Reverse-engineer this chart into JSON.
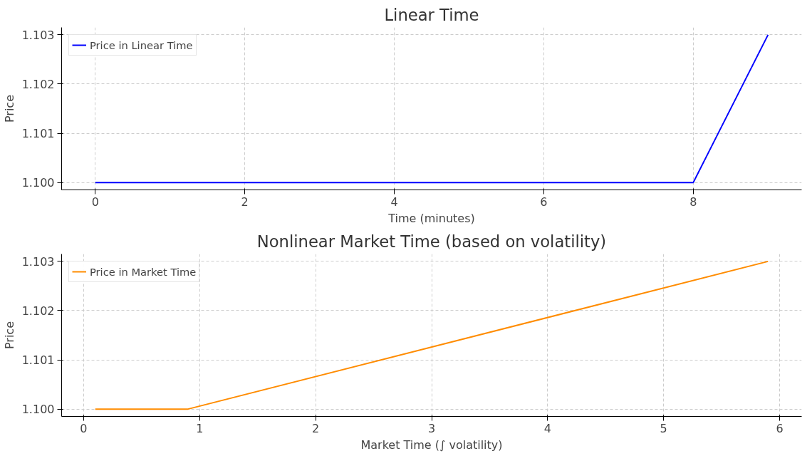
{
  "chart_data": [
    {
      "type": "line",
      "title": "Linear Time",
      "xlabel": "Time (minutes)",
      "ylabel": "Price",
      "x": [
        0,
        1,
        2,
        3,
        4,
        5,
        6,
        7,
        8,
        9
      ],
      "series": [
        {
          "name": "Price in Linear Time",
          "color": "#0000ff",
          "values": [
            1.1,
            1.1,
            1.1,
            1.1,
            1.1,
            1.1,
            1.1,
            1.1,
            1.1,
            1.103
          ]
        }
      ],
      "xlim": [
        -0.45,
        9.45
      ],
      "ylim": [
        1.09985,
        1.10315
      ],
      "xticks": [
        0,
        2,
        4,
        6,
        8
      ],
      "yticks": [
        {
          "value": 1.1,
          "label": "1.100"
        },
        {
          "value": 1.101,
          "label": "1.101"
        },
        {
          "value": 1.102,
          "label": "1.102"
        },
        {
          "value": 1.103,
          "label": "1.103"
        }
      ],
      "grid": true,
      "legend": "top left",
      "marker": "none",
      "line_style": "solid"
    },
    {
      "type": "line",
      "title": "Nonlinear Market Time (based on volatility)",
      "xlabel": "Market Time (∫ volatility)",
      "ylabel": "Price",
      "x": [
        0.1,
        0.9,
        5.9
      ],
      "series": [
        {
          "name": "Price in Market Time",
          "color": "#ff8c00",
          "values": [
            1.1,
            1.1,
            1.103
          ]
        }
      ],
      "xlim": [
        -0.19,
        6.19
      ],
      "ylim": [
        1.09985,
        1.10315
      ],
      "xticks": [
        0,
        1,
        2,
        3,
        4,
        5,
        6
      ],
      "yticks": [
        {
          "value": 1.1,
          "label": "1.100"
        },
        {
          "value": 1.101,
          "label": "1.101"
        },
        {
          "value": 1.102,
          "label": "1.102"
        },
        {
          "value": 1.103,
          "label": "1.103"
        }
      ],
      "grid": true,
      "legend": "top left",
      "marker": "none",
      "line_style": "solid"
    }
  ]
}
